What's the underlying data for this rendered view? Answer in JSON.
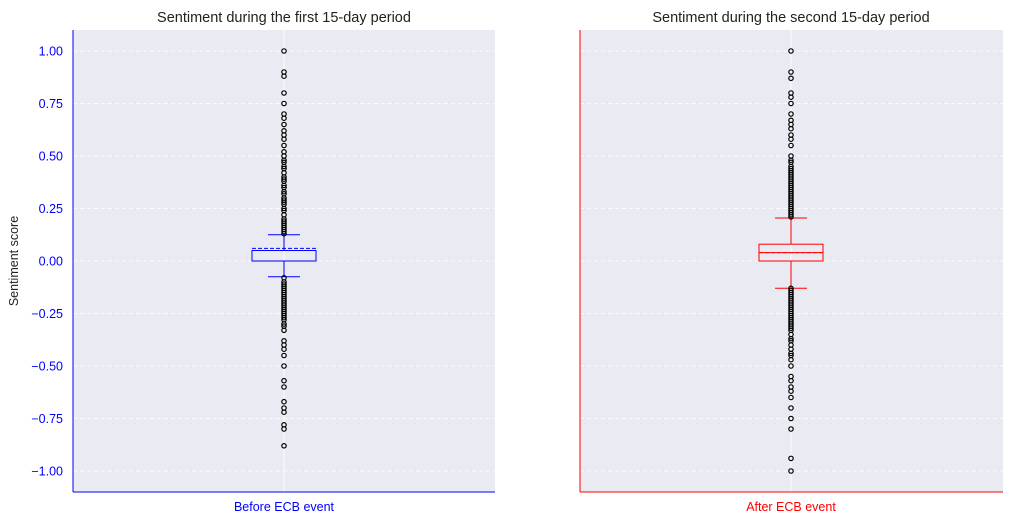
{
  "chart_data": [
    {
      "type": "box",
      "title": "Sentiment during the first 15-day period",
      "ylabel": "Sentiment score",
      "category": "Before ECB event",
      "color": "#0000ff",
      "ylim": [
        -1.1,
        1.1
      ],
      "yticks": [
        1.0,
        0.75,
        0.5,
        0.25,
        0.0,
        -0.25,
        -0.5,
        -0.75,
        -1.0
      ],
      "ytick_labels": [
        "1.00",
        "0.75",
        "0.50",
        "0.25",
        "0.00",
        "−0.25",
        "−0.50",
        "−0.75",
        "−1.00"
      ],
      "grid": true,
      "box": {
        "q1": 0.0,
        "median": 0.0,
        "q3": 0.05,
        "mean": 0.06,
        "whisker_low": -0.075,
        "whisker_high": 0.125
      },
      "outliers": [
        1.0,
        0.9,
        0.88,
        0.8,
        0.75,
        0.7,
        0.68,
        0.65,
        0.62,
        0.6,
        0.58,
        0.55,
        0.52,
        0.5,
        0.48,
        0.47,
        0.45,
        0.44,
        0.42,
        0.4,
        0.39,
        0.38,
        0.36,
        0.35,
        0.33,
        0.32,
        0.3,
        0.29,
        0.28,
        0.27,
        0.25,
        0.24,
        0.22,
        0.2,
        0.19,
        0.18,
        0.17,
        0.16,
        0.15,
        0.14,
        0.13,
        -0.08,
        -0.1,
        -0.11,
        -0.12,
        -0.13,
        -0.14,
        -0.15,
        -0.16,
        -0.17,
        -0.18,
        -0.19,
        -0.2,
        -0.21,
        -0.22,
        -0.23,
        -0.24,
        -0.25,
        -0.26,
        -0.27,
        -0.28,
        -0.3,
        -0.31,
        -0.33,
        -0.38,
        -0.4,
        -0.42,
        -0.45,
        -0.5,
        -0.57,
        -0.6,
        -0.67,
        -0.7,
        -0.72,
        -0.78,
        -0.8,
        -0.88
      ]
    },
    {
      "type": "box",
      "title": "Sentiment during the second 15-day period",
      "category": "After ECB event",
      "color": "#ff0000",
      "ylim": [
        -1.1,
        1.1
      ],
      "grid": true,
      "box": {
        "q1": 0.0,
        "median": 0.04,
        "q3": 0.08,
        "mean": 0.04,
        "whisker_low": -0.13,
        "whisker_high": 0.205
      },
      "outliers": [
        1.0,
        0.9,
        0.87,
        0.8,
        0.78,
        0.75,
        0.7,
        0.67,
        0.65,
        0.63,
        0.6,
        0.58,
        0.55,
        0.5,
        0.48,
        0.47,
        0.45,
        0.44,
        0.43,
        0.42,
        0.41,
        0.4,
        0.39,
        0.38,
        0.37,
        0.36,
        0.35,
        0.34,
        0.33,
        0.32,
        0.31,
        0.3,
        0.29,
        0.28,
        0.27,
        0.26,
        0.25,
        0.24,
        0.23,
        0.22,
        0.21,
        -0.13,
        -0.14,
        -0.15,
        -0.16,
        -0.17,
        -0.18,
        -0.19,
        -0.2,
        -0.21,
        -0.22,
        -0.23,
        -0.24,
        -0.25,
        -0.26,
        -0.27,
        -0.28,
        -0.29,
        -0.3,
        -0.31,
        -0.32,
        -0.33,
        -0.35,
        -0.37,
        -0.38,
        -0.4,
        -0.42,
        -0.44,
        -0.45,
        -0.47,
        -0.5,
        -0.55,
        -0.57,
        -0.6,
        -0.62,
        -0.65,
        -0.7,
        -0.75,
        -0.8,
        -0.94,
        -1.0
      ]
    }
  ]
}
